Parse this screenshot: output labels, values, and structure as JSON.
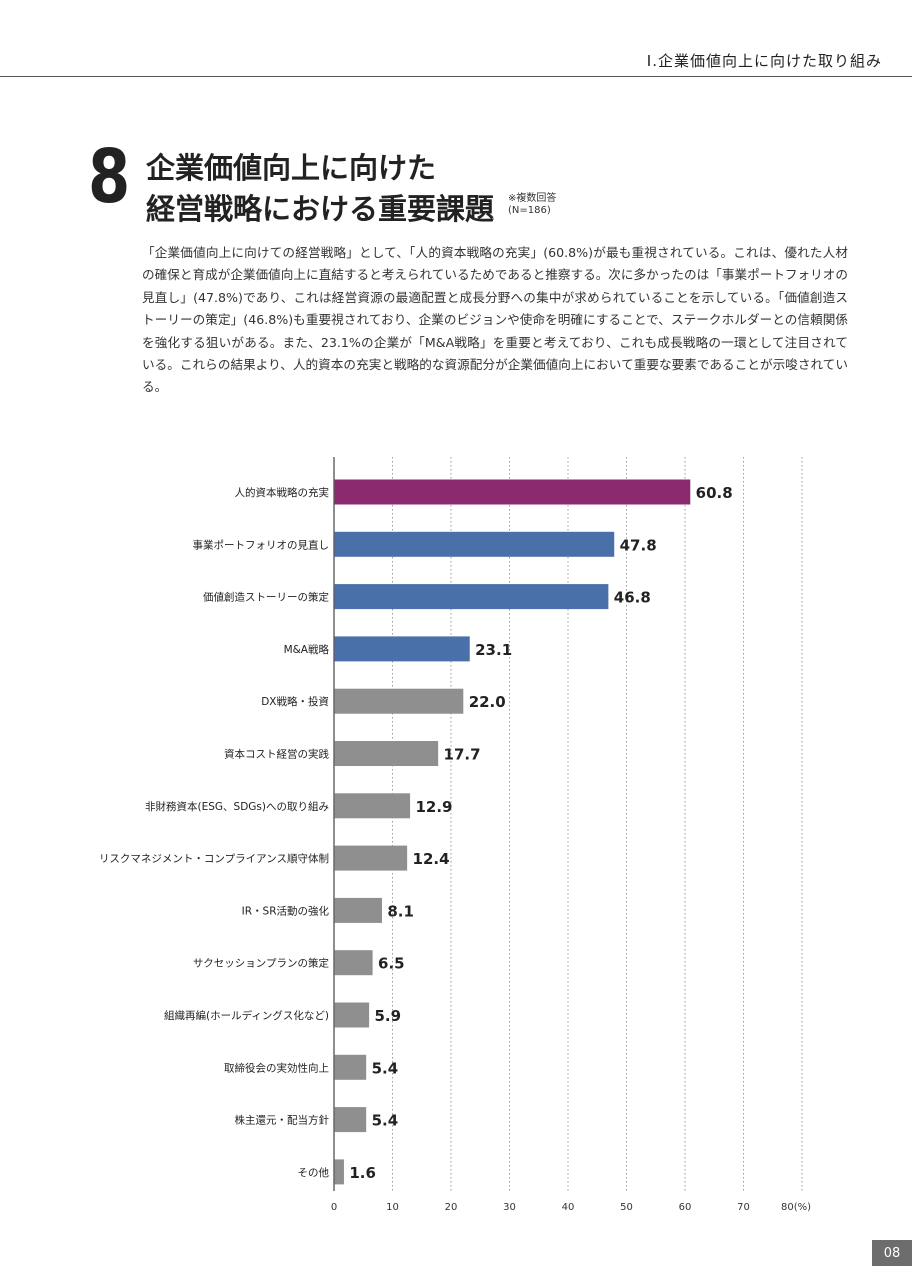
{
  "header": {
    "section_title": "Ⅰ.企業価値向上に向けた取り組み"
  },
  "section": {
    "number": "8",
    "title_line1": "企業価値向上に向けた",
    "title_line2": "経営戦略における重要課題",
    "note_line1": "※複数回答",
    "note_line2": "(N=186)"
  },
  "body_text": "「企業価値向上に向けての経営戦略」として、「人的資本戦略の充実」(60.8%)が最も重視されている。これは、優れた人材の確保と育成が企業価値向上に直結すると考えられているためであると推察する。次に多かったのは「事業ポートフォリオの見直し」(47.8%)であり、これは経営資源の最適配置と成長分野への集中が求められていることを示している。「価値創造ストーリーの策定」(46.8%)も重要視されており、企業のビジョンや使命を明確にすることで、ステークホルダーとの信頼関係を強化する狙いがある。また、23.1%の企業が「M&A戦略」を重要と考えており、これも成長戦略の一環として注目されている。これらの結果より、人的資本の充実と戦略的な資源配分が企業価値向上において重要な要素であることが示唆されている。",
  "chart_data": {
    "type": "bar",
    "orientation": "horizontal",
    "categories": [
      "人的資本戦略の充実",
      "事業ポートフォリオの見直し",
      "価値創造ストーリーの策定",
      "M&A戦略",
      "DX戦略・投資",
      "資本コスト経営の実践",
      "非財務資本(ESG、SDGs)への取り組み",
      "リスクマネジメント・コンプライアンス順守体制",
      "IR・SR活動の強化",
      "サクセッションプランの策定",
      "組織再編(ホールディングス化など)",
      "取締役会の実効性向上",
      "株主還元・配当方針",
      "その他"
    ],
    "values": [
      60.8,
      47.8,
      46.8,
      23.1,
      22.0,
      17.7,
      12.9,
      12.4,
      8.1,
      6.5,
      5.9,
      5.4,
      5.4,
      1.6
    ],
    "value_labels": [
      "60.8",
      "47.8",
      "46.8",
      "23.1",
      "22.0",
      "17.7",
      "12.9",
      "12.4",
      "8.1",
      "6.5",
      "5.9",
      "5.4",
      "5.4",
      "1.6"
    ],
    "bar_colors": [
      "#8b2a6f",
      "#4a70aa",
      "#4a70aa",
      "#4a70aa",
      "#8f8f8f",
      "#8f8f8f",
      "#8f8f8f",
      "#8f8f8f",
      "#8f8f8f",
      "#8f8f8f",
      "#8f8f8f",
      "#8f8f8f",
      "#8f8f8f",
      "#8f8f8f"
    ],
    "xlim": [
      0,
      80
    ],
    "x_ticks": [
      "0",
      "10",
      "20",
      "30",
      "40",
      "50",
      "60",
      "70",
      "80"
    ],
    "x_unit": "(%)",
    "grid": "vertical-dotted"
  },
  "page_number": "08"
}
